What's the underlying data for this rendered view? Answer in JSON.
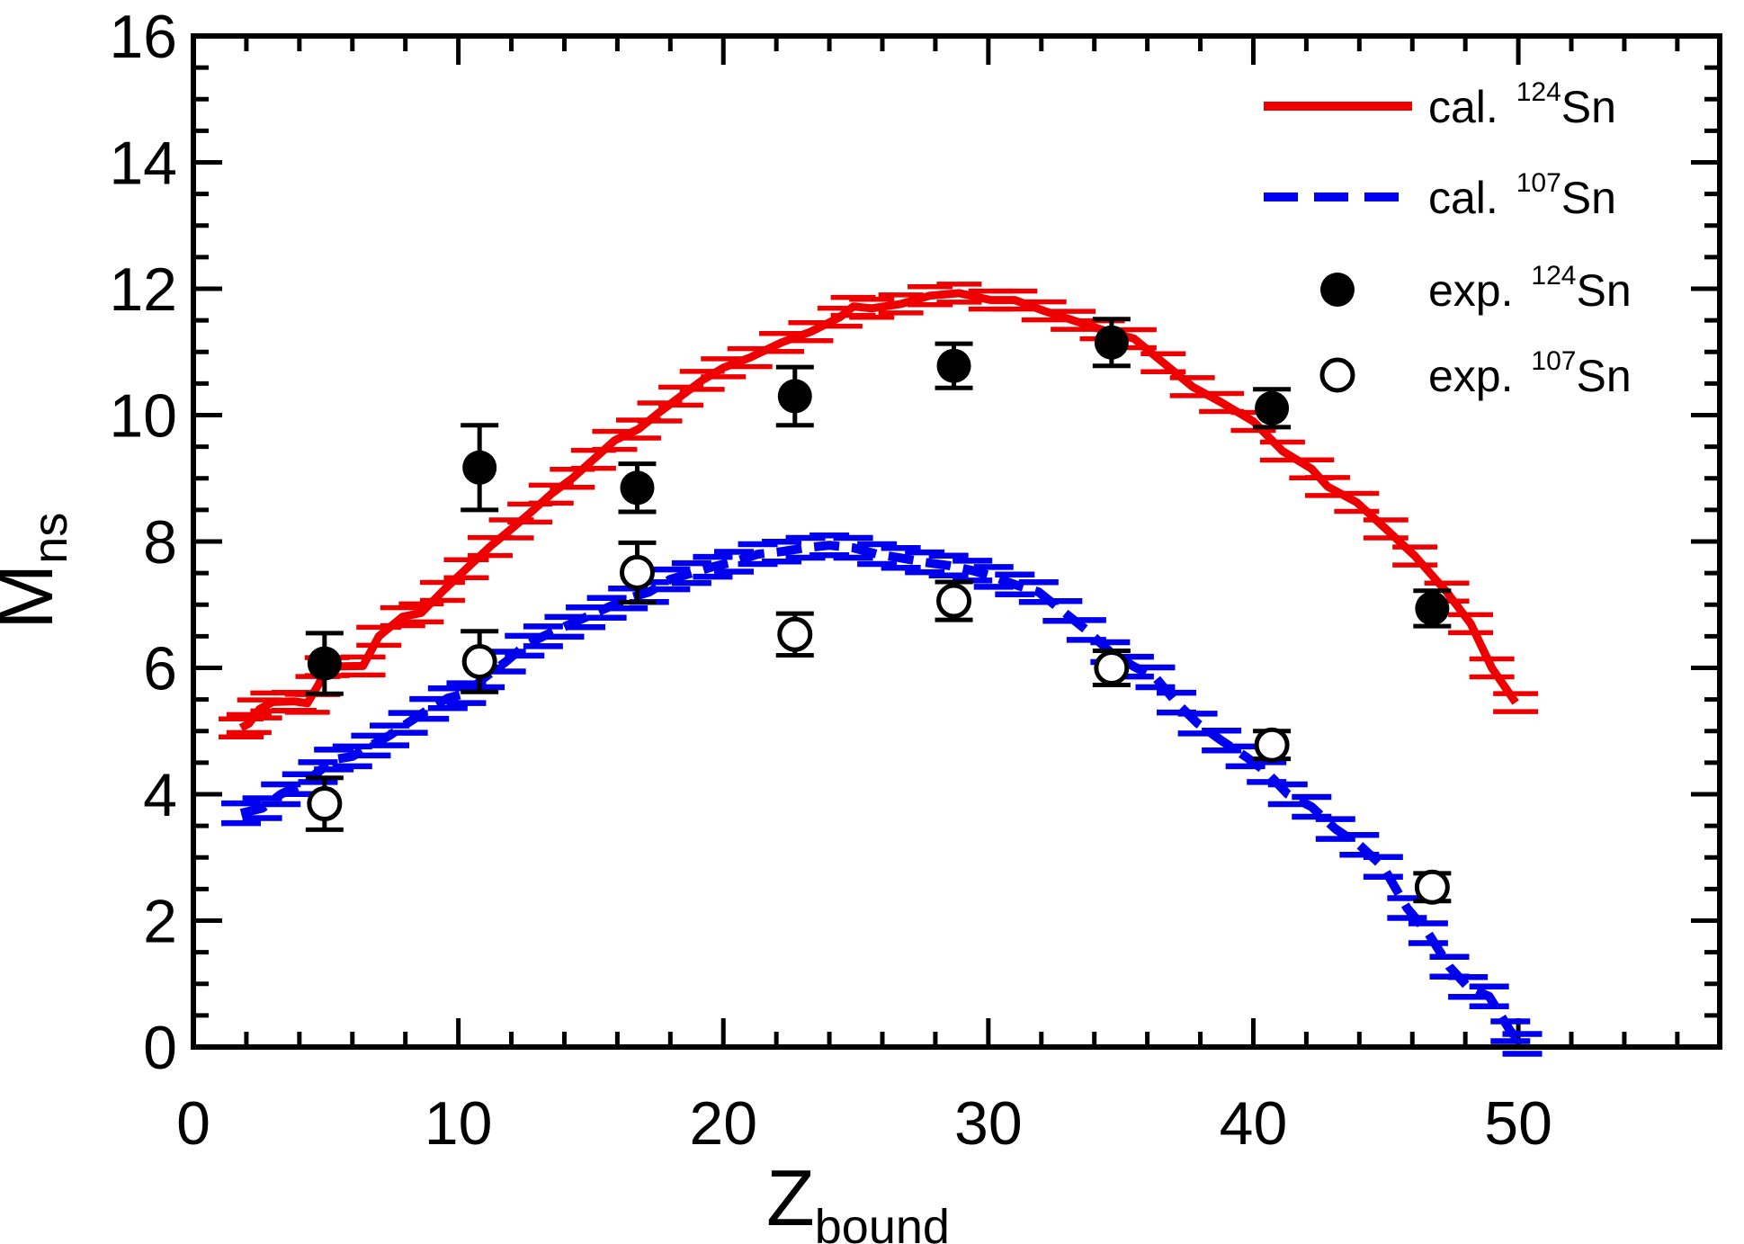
{
  "figure": {
    "background": "#ffffff",
    "frame_color": "#000000"
  },
  "chart_data": {
    "type": "line",
    "title": "",
    "xlabel": "Z_bound",
    "ylabel": "M_ns",
    "xlabel_parts": {
      "main": "Z",
      "sub": "bound"
    },
    "ylabel_parts": {
      "main": "M",
      "sub": "ns"
    },
    "x_axis": {
      "min": 0,
      "max": 57.6,
      "major_ticks": [
        0,
        10,
        20,
        30,
        40,
        50
      ],
      "tick_labels": [
        "0",
        "10",
        "20",
        "30",
        "40",
        "50"
      ],
      "minor_step": 2,
      "grid": false
    },
    "y_axis": {
      "min": 0,
      "max": 16,
      "major_ticks": [
        0,
        2,
        4,
        6,
        8,
        10,
        12,
        14,
        16
      ],
      "tick_labels": [
        "0",
        "2",
        "4",
        "6",
        "8",
        "10",
        "12",
        "14",
        "16"
      ],
      "minor_step": 0.5,
      "grid": false
    },
    "legend": {
      "position": "top-right",
      "items": [
        {
          "series": "cal-124sn",
          "swatch": "red-solid-line",
          "prefix": "cal. ",
          "sup": "124",
          "base": "Sn"
        },
        {
          "series": "cal-107sn",
          "swatch": "blue-dashed-line",
          "prefix": "cal. ",
          "sup": "107",
          "base": "Sn"
        },
        {
          "series": "exp-124sn",
          "swatch": "black-filled-circle",
          "prefix": "exp. ",
          "sup": "124",
          "base": "Sn"
        },
        {
          "series": "exp-107sn",
          "swatch": "black-open-circle",
          "prefix": "exp. ",
          "sup": "107",
          "base": "Sn"
        }
      ]
    },
    "series": [
      {
        "id": "cal-124sn",
        "name": "cal. 124Sn",
        "kind": "line",
        "line_style": "solid",
        "color": "#ee0000",
        "points": [
          [
            1.8,
            5.05
          ],
          [
            2.1,
            5.12
          ],
          [
            2.5,
            5.35
          ],
          [
            3.0,
            5.46
          ],
          [
            3.8,
            5.47
          ],
          [
            4.3,
            5.44
          ],
          [
            4.7,
            5.72
          ],
          [
            5.05,
            6.02
          ],
          [
            6.4,
            6.03
          ],
          [
            7.0,
            6.5
          ],
          [
            7.9,
            6.81
          ],
          [
            8.6,
            6.87
          ],
          [
            9.4,
            7.21
          ],
          [
            10.3,
            7.57
          ],
          [
            11.2,
            7.92
          ],
          [
            12.0,
            8.2
          ],
          [
            12.7,
            8.45
          ],
          [
            13.5,
            8.75
          ],
          [
            14.3,
            9.0
          ],
          [
            15.1,
            9.3
          ],
          [
            15.9,
            9.6
          ],
          [
            16.8,
            9.78
          ],
          [
            17.6,
            10.05
          ],
          [
            18.4,
            10.3
          ],
          [
            19.2,
            10.55
          ],
          [
            20.0,
            10.75
          ],
          [
            21.0,
            10.91
          ],
          [
            22.2,
            11.15
          ],
          [
            23.3,
            11.32
          ],
          [
            24.4,
            11.55
          ],
          [
            24.9,
            11.72
          ],
          [
            25.6,
            11.69
          ],
          [
            26.7,
            11.76
          ],
          [
            27.8,
            11.89
          ],
          [
            28.9,
            11.93
          ],
          [
            30.1,
            11.82
          ],
          [
            31.0,
            11.82
          ],
          [
            32.1,
            11.65
          ],
          [
            33.2,
            11.5
          ],
          [
            34.3,
            11.35
          ],
          [
            35.5,
            11.21
          ],
          [
            36.6,
            10.83
          ],
          [
            37.7,
            10.45
          ],
          [
            38.8,
            10.2
          ],
          [
            40.0,
            9.9
          ],
          [
            41.1,
            9.43
          ],
          [
            42.2,
            9.15
          ],
          [
            42.8,
            8.87
          ],
          [
            43.9,
            8.62
          ],
          [
            45.0,
            8.2
          ],
          [
            46.1,
            7.77
          ],
          [
            47.3,
            7.2
          ],
          [
            48.2,
            6.7
          ],
          [
            49.0,
            6.0
          ],
          [
            49.9,
            5.45
          ]
        ]
      },
      {
        "id": "cal-107sn",
        "name": "cal. 107Sn",
        "kind": "line",
        "line_style": "dashed",
        "color": "#0000ee",
        "points": [
          [
            1.8,
            3.7
          ],
          [
            2.6,
            3.78
          ],
          [
            3.3,
            4.0
          ],
          [
            4.1,
            4.16
          ],
          [
            4.7,
            4.35
          ],
          [
            5.3,
            4.55
          ],
          [
            6.0,
            4.6
          ],
          [
            6.7,
            4.77
          ],
          [
            7.4,
            4.93
          ],
          [
            8.1,
            5.13
          ],
          [
            8.9,
            5.35
          ],
          [
            9.6,
            5.52
          ],
          [
            10.3,
            5.6
          ],
          [
            11.0,
            5.85
          ],
          [
            11.8,
            6.1
          ],
          [
            12.5,
            6.35
          ],
          [
            13.2,
            6.5
          ],
          [
            14.0,
            6.65
          ],
          [
            14.8,
            6.8
          ],
          [
            15.6,
            6.95
          ],
          [
            16.4,
            7.1
          ],
          [
            17.2,
            7.2
          ],
          [
            18.0,
            7.4
          ],
          [
            18.8,
            7.5
          ],
          [
            19.6,
            7.6
          ],
          [
            20.4,
            7.68
          ],
          [
            21.3,
            7.8
          ],
          [
            22.2,
            7.84
          ],
          [
            23.1,
            7.9
          ],
          [
            24.0,
            7.94
          ],
          [
            24.9,
            7.9
          ],
          [
            25.8,
            7.8
          ],
          [
            26.7,
            7.74
          ],
          [
            27.6,
            7.67
          ],
          [
            28.5,
            7.62
          ],
          [
            29.4,
            7.54
          ],
          [
            30.2,
            7.44
          ],
          [
            31.0,
            7.32
          ],
          [
            31.9,
            7.2
          ],
          [
            32.8,
            6.9
          ],
          [
            33.7,
            6.6
          ],
          [
            34.6,
            6.25
          ],
          [
            35.5,
            6.02
          ],
          [
            36.3,
            5.85
          ],
          [
            37.1,
            5.45
          ],
          [
            37.9,
            5.12
          ],
          [
            38.8,
            4.85
          ],
          [
            39.7,
            4.6
          ],
          [
            40.5,
            4.35
          ],
          [
            41.3,
            4.0
          ],
          [
            42.2,
            3.8
          ],
          [
            43.1,
            3.45
          ],
          [
            44.0,
            3.2
          ],
          [
            44.9,
            2.85
          ],
          [
            45.8,
            2.2
          ],
          [
            46.6,
            1.8
          ],
          [
            47.4,
            1.27
          ],
          [
            48.1,
            0.95
          ],
          [
            48.9,
            0.8
          ],
          [
            49.7,
            0.25
          ],
          [
            50.15,
            0.05
          ]
        ]
      },
      {
        "id": "exp-124sn",
        "name": "exp. 124Sn",
        "kind": "scatter",
        "marker": "filled-circle",
        "color": "#000000",
        "points": [
          {
            "x": 4.95,
            "y": 6.07,
            "err": 0.48
          },
          {
            "x": 10.8,
            "y": 9.17,
            "err": 0.67
          },
          {
            "x": 16.75,
            "y": 8.85,
            "err": 0.38
          },
          {
            "x": 22.7,
            "y": 10.3,
            "err": 0.46
          },
          {
            "x": 28.7,
            "y": 10.78,
            "err": 0.35
          },
          {
            "x": 34.65,
            "y": 11.15,
            "err": 0.37
          },
          {
            "x": 40.7,
            "y": 10.11,
            "err": 0.3
          },
          {
            "x": 46.75,
            "y": 6.94,
            "err": 0.28
          }
        ]
      },
      {
        "id": "exp-107sn",
        "name": "exp. 107Sn",
        "kind": "scatter",
        "marker": "open-circle",
        "color": "#000000",
        "points": [
          {
            "x": 4.95,
            "y": 3.85,
            "err": 0.41
          },
          {
            "x": 10.8,
            "y": 6.1,
            "err": 0.48
          },
          {
            "x": 16.75,
            "y": 7.51,
            "err": 0.47
          },
          {
            "x": 22.7,
            "y": 6.53,
            "err": 0.33
          },
          {
            "x": 28.7,
            "y": 7.06,
            "err": 0.3
          },
          {
            "x": 34.65,
            "y": 6.0,
            "err": 0.27
          },
          {
            "x": 40.7,
            "y": 4.78,
            "err": 0.22
          },
          {
            "x": 46.75,
            "y": 2.53,
            "err": 0.22
          }
        ]
      }
    ]
  }
}
